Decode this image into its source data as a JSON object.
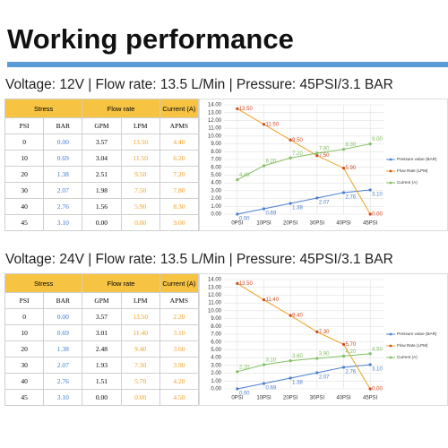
{
  "title": "Working performance",
  "sections": [
    {
      "subtitle": "Voltage: 12V | Flow rate: 13.5 L/Min | Pressure: 45PSI/3.1 BAR",
      "table": {
        "group_headers": [
          "Stress",
          "Flow rate",
          "Current (A)"
        ],
        "headers": [
          "PSI",
          "BAR",
          "GPM",
          "LPM",
          "APMS"
        ],
        "rows": [
          [
            "0",
            "0.00",
            "3.57",
            "13.50",
            "4.40"
          ],
          [
            "10",
            "0.69",
            "3.04",
            "11.50",
            "6.20"
          ],
          [
            "20",
            "1.38",
            "2.51",
            "9.50",
            "7.20"
          ],
          [
            "30",
            "2.07",
            "1.98",
            "7.50",
            "7.80"
          ],
          [
            "40",
            "2.76",
            "1.56",
            "5.90",
            "8.30"
          ],
          [
            "45",
            "3.10",
            "0.00",
            "0.00",
            "9.00"
          ]
        ]
      }
    },
    {
      "subtitle": "Voltage: 24V | Flow rate: 13.5 L/Min | Pressure: 45PSI/3.1 BAR",
      "table": {
        "group_headers": [
          "Stress",
          "Flow rate",
          "Current (A)"
        ],
        "headers": [
          "PSI",
          "BAR",
          "GPM",
          "LPM",
          "APMS"
        ],
        "rows": [
          [
            "0",
            "0.00",
            "3.57",
            "13.50",
            "2.20"
          ],
          [
            "10",
            "0.69",
            "3.01",
            "11.40",
            "3.10"
          ],
          [
            "20",
            "1.38",
            "2.48",
            "9.40",
            "3.60"
          ],
          [
            "30",
            "2.07",
            "1.93",
            "7.30",
            "3.90"
          ],
          [
            "40",
            "2.76",
            "1.51",
            "5.70",
            "4.20"
          ],
          [
            "45",
            "3.10",
            "0.00",
            "0.00",
            "4.50"
          ]
        ]
      }
    }
  ],
  "chart_data": [
    {
      "type": "line",
      "categories": [
        "0PSI",
        "10PSI",
        "20PSI",
        "30PSI",
        "40PSI",
        "45PSI"
      ],
      "series": [
        {
          "name": "Pressure value (BAR)",
          "color": "#4a7fd0",
          "values": [
            0,
            0.69,
            1.38,
            2.07,
            2.76,
            3.1
          ],
          "value_labels": [
            "0.00",
            "0.69",
            "1.38",
            "2.07",
            "2.76",
            "3.10"
          ]
        },
        {
          "name": "Flow Rate (LPM)",
          "color": "#f0a020",
          "values": [
            13.5,
            11.5,
            9.5,
            7.5,
            5.9,
            0
          ],
          "value_labels": [
            "13.50",
            "11.50",
            "9.50",
            "7.50",
            "5.90",
            "0.00"
          ]
        },
        {
          "name": "Current (A)",
          "color": "#80c060",
          "values": [
            4.4,
            6.2,
            7.2,
            7.8,
            8.3,
            9
          ],
          "value_labels": [
            "4.40",
            "6.20",
            "7.20",
            "7.80",
            "8.30",
            "9.00"
          ]
        }
      ],
      "ylim": [
        0,
        14
      ],
      "yticks": [
        {
          "value": 0,
          "label": "0.00"
        },
        {
          "value": 1,
          "label": "1.00"
        },
        {
          "value": 2,
          "label": "2.00"
        },
        {
          "value": 3,
          "label": "3.00"
        },
        {
          "value": 4,
          "label": "4.00"
        },
        {
          "value": 5,
          "label": "5.00"
        },
        {
          "value": 6,
          "label": "6.00"
        },
        {
          "value": 7,
          "label": "7.00"
        },
        {
          "value": 8,
          "label": "8.00"
        },
        {
          "value": 9,
          "label": "9.00"
        },
        {
          "value": 10,
          "label": "10.00"
        },
        {
          "value": 11,
          "label": "11.00"
        },
        {
          "value": 12,
          "label": "12.00"
        },
        {
          "value": 13,
          "label": "13.00"
        },
        {
          "value": 14,
          "label": "14.00"
        }
      ],
      "grid": true,
      "legend": "right"
    },
    {
      "type": "line",
      "categories": [
        "0PSI",
        "10PSI",
        "20PSI",
        "30PSI",
        "40PSI",
        "45PSI"
      ],
      "series": [
        {
          "name": "Pressure value (BAR)",
          "color": "#4a7fd0",
          "values": [
            0,
            0.69,
            1.38,
            2.07,
            2.76,
            3.1
          ],
          "value_labels": [
            "0.00",
            "0.69",
            "1.38",
            "2.07",
            "2.76",
            "3.10"
          ]
        },
        {
          "name": "Flow Rate (LPM)",
          "color": "#f0a020",
          "values": [
            13.5,
            11.4,
            9.4,
            7.3,
            5.7,
            0
          ],
          "value_labels": [
            "13.50",
            "11.40",
            "9.40",
            "7.30",
            "5.70",
            "0.00"
          ]
        },
        {
          "name": "Current (A)",
          "color": "#80c060",
          "values": [
            2.2,
            3.1,
            3.6,
            3.9,
            4.2,
            4.5
          ],
          "value_labels": [
            "2.20",
            "3.10",
            "3.60",
            "3.90",
            "4.20",
            "4.50"
          ]
        }
      ],
      "ylim": [
        0,
        14
      ],
      "yticks": [
        {
          "value": 0,
          "label": "0.00"
        },
        {
          "value": 1,
          "label": "1.00"
        },
        {
          "value": 2,
          "label": "2.00"
        },
        {
          "value": 3,
          "label": "3.00"
        },
        {
          "value": 4,
          "label": "4.00"
        },
        {
          "value": 5,
          "label": "5.00"
        },
        {
          "value": 6,
          "label": "6.00"
        },
        {
          "value": 7,
          "label": "7.00"
        },
        {
          "value": 8,
          "label": "8.00"
        },
        {
          "value": 9,
          "label": "9.00"
        },
        {
          "value": 10,
          "label": "10.00"
        },
        {
          "value": 11,
          "label": "11.00"
        },
        {
          "value": 12,
          "label": "12.00"
        },
        {
          "value": 13,
          "label": "13.00"
        },
        {
          "value": 14,
          "label": "14.00"
        }
      ],
      "grid": true,
      "legend": "right"
    }
  ]
}
